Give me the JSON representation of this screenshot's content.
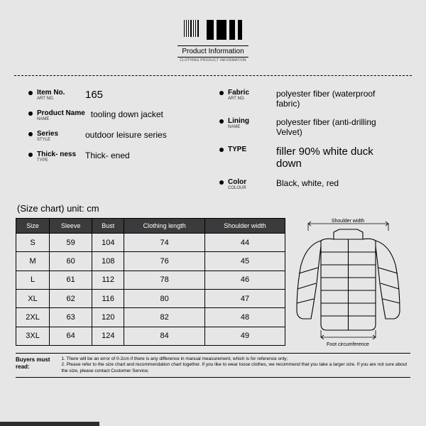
{
  "header": {
    "title": "Product Information",
    "subtitle": "CLOTHING PRODUCT INFORMATION"
  },
  "specs_left": [
    {
      "label": "Item No.",
      "sublabel": "ART NO.",
      "value": "165",
      "big": true
    },
    {
      "label": "Product Name",
      "sublabel": "NAME",
      "value": "tooling down jacket"
    },
    {
      "label": "Series",
      "sublabel": "STYLE",
      "value": "outdoor leisure series"
    },
    {
      "label": "Thick-\nness",
      "sublabel": "TYPE",
      "value": "Thick-\nened"
    }
  ],
  "specs_right": [
    {
      "label": "Fabric",
      "sublabel": "ART NO.",
      "value": "polyester fiber (waterproof fabric)"
    },
    {
      "label": "Lining",
      "sublabel": "NAME",
      "value": "polyester fiber (anti-drilling Velvet)"
    },
    {
      "label": "TYPE",
      "sublabel": "",
      "value": "filler 90% white duck down",
      "big": true
    },
    {
      "label": "Color",
      "sublabel": "COLOUR",
      "value": "Black, white, red",
      "med": true
    }
  ],
  "size_chart": {
    "title": "(Size chart) unit: cm",
    "columns": [
      "Size",
      "Sleeve",
      "Bust",
      "Clothing length",
      "Shoulder width"
    ],
    "rows": [
      [
        "S",
        "59",
        "104",
        "74",
        "44"
      ],
      [
        "M",
        "60",
        "108",
        "76",
        "45"
      ],
      [
        "L",
        "61",
        "112",
        "78",
        "46"
      ],
      [
        "XL",
        "62",
        "116",
        "80",
        "47"
      ],
      [
        "2XL",
        "63",
        "120",
        "82",
        "48"
      ],
      [
        "3XL",
        "64",
        "124",
        "84",
        "49"
      ]
    ],
    "header_bg": "#3b3b3d",
    "header_color": "#ffffff",
    "border_color": "#000000"
  },
  "diagram_labels": {
    "shoulder": "Shoulder width",
    "foot": "Foot circumference"
  },
  "buyers_note": {
    "label": "Buyers must read:",
    "lines": [
      "1. There will be an error of 0-2cm if there is any difference in manual measurement, which is for reference only;",
      "2. Please refer to the size chart and recommendation chart together. If you like to wear loose clothes, we recommend that you take a larger size. If you are not sure about the size, please contact Customer Service;"
    ]
  },
  "colors": {
    "page_bg": "#e6e6e7",
    "text": "#000000",
    "dark": "#2e2e30"
  }
}
